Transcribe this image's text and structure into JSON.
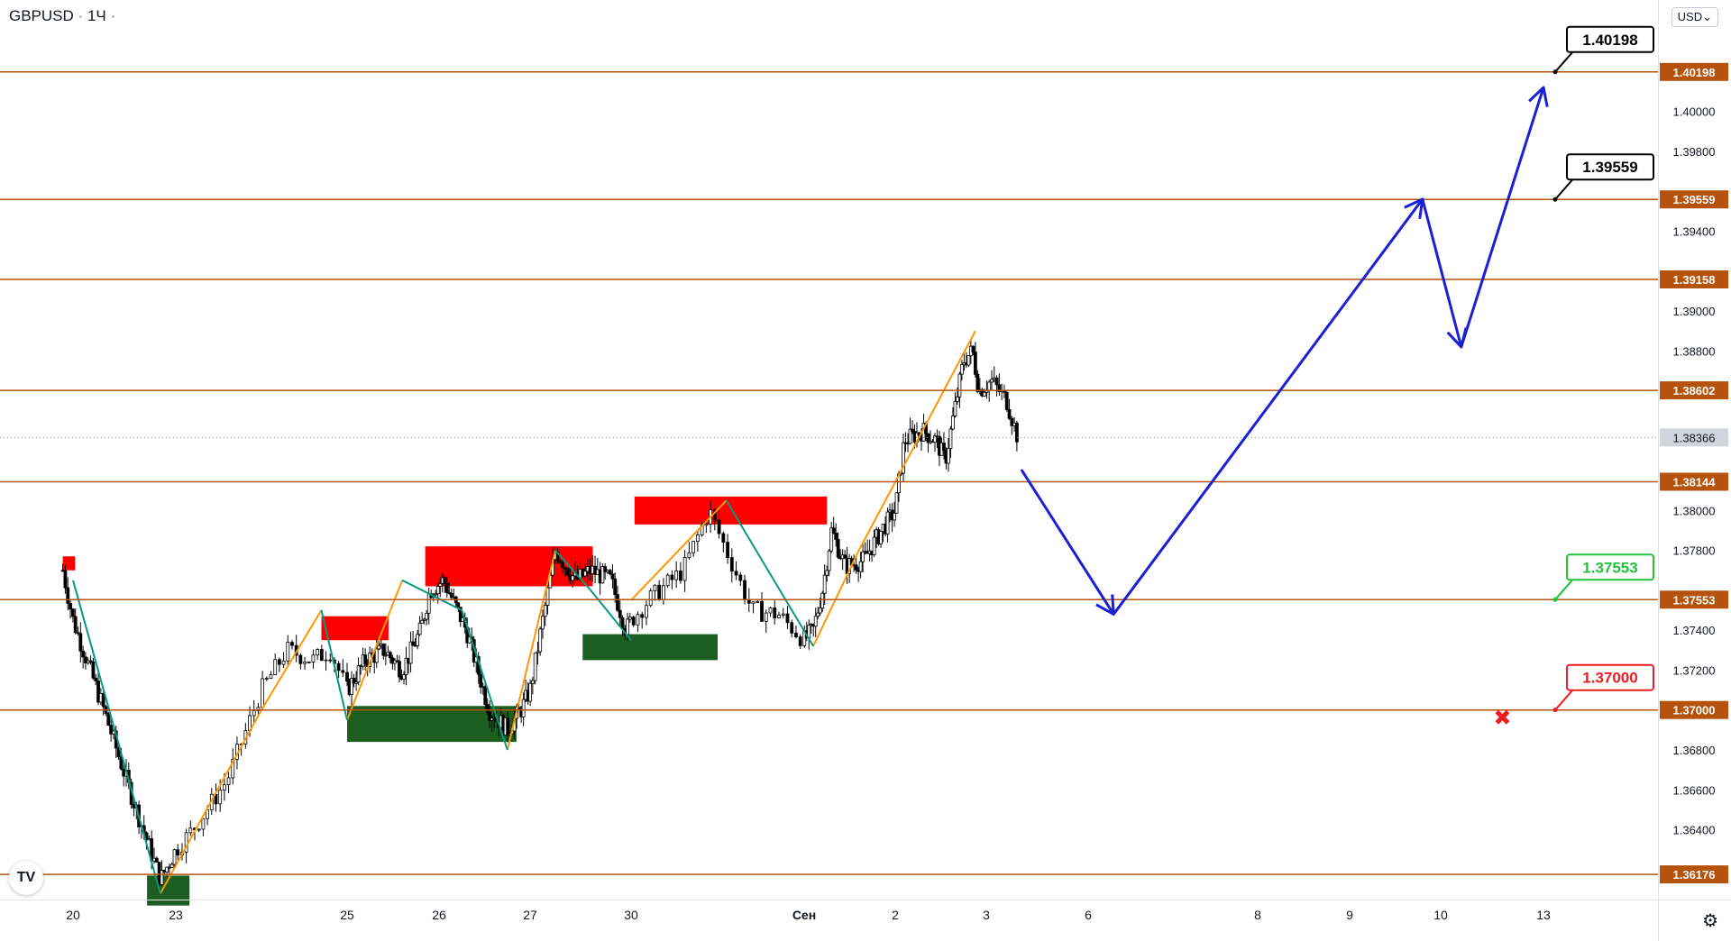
{
  "header": {
    "symbol": "GBPUSD",
    "separator": "·",
    "interval": "1Ч",
    "trailing_dot": "·"
  },
  "currency_button": "USD⌄",
  "logo_text": "TV",
  "settings_icon": "gear-icon",
  "colors": {
    "level_line": "#b5530d",
    "level_tag_bg": "#b5530d",
    "current_price_bg": "#d1d4dc",
    "up_leg": "#ff9800",
    "down_leg": "#089981",
    "supply_zone": "#ff0000",
    "demand_zone": "#1b5e20",
    "forecast_path": "#1a1fd6",
    "target_green": "#22c33a",
    "stop_red": "#ee1c24",
    "candle": "#000000"
  },
  "chart_data": {
    "type": "candlestick",
    "symbol": "GBPUSD",
    "interval": "1H",
    "ylim": [
      1.3605,
      1.4045
    ],
    "y_ticks": [
      1.364,
      1.366,
      1.368,
      1.372,
      1.374,
      1.378,
      1.38,
      1.388,
      1.39,
      1.394,
      1.398,
      1.4
    ],
    "y_tick_labels": [
      "1.36400",
      "1.36600",
      "1.36800",
      "1.37200",
      "1.37400",
      "1.37800",
      "1.38000",
      "1.38800",
      "1.39000",
      "1.39400",
      "1.39800",
      "1.40000"
    ],
    "x_ticks": [
      {
        "label": "20",
        "t": 0
      },
      {
        "label": "23",
        "t": 1
      },
      {
        "label": "25",
        "t": 2
      },
      {
        "label": "26",
        "t": 3
      },
      {
        "label": "27",
        "t": 4
      },
      {
        "label": "30",
        "t": 5
      },
      {
        "label": "Сен",
        "t": 6
      },
      {
        "label": "2",
        "t": 7
      },
      {
        "label": "3",
        "t": 8
      },
      {
        "label": "6",
        "t": 9
      },
      {
        "label": "8",
        "t": 10
      },
      {
        "label": "9",
        "t": 11
      },
      {
        "label": "10",
        "t": 12
      },
      {
        "label": "13",
        "t": 13
      }
    ],
    "horizontal_levels": [
      {
        "value": 1.40198,
        "label": "1.40198"
      },
      {
        "value": 1.39559,
        "label": "1.39559"
      },
      {
        "value": 1.39158,
        "label": "1.39158"
      },
      {
        "value": 1.38602,
        "label": "1.38602"
      },
      {
        "value": 1.38144,
        "label": "1.38144"
      },
      {
        "value": 1.37553,
        "label": "1.37553"
      },
      {
        "value": 1.37,
        "label": "1.37000"
      },
      {
        "value": 1.36176,
        "label": "1.36176"
      }
    ],
    "current_price": {
      "value": 1.38366,
      "label": "1.38366"
    },
    "close_path": [
      [
        -0.1,
        1.377
      ],
      [
        0.0,
        1.3745
      ],
      [
        0.3,
        1.37
      ],
      [
        0.55,
        1.366
      ],
      [
        0.75,
        1.363
      ],
      [
        0.85,
        1.3615
      ],
      [
        0.95,
        1.3625
      ],
      [
        1.1,
        1.364
      ],
      [
        1.3,
        1.3665
      ],
      [
        1.5,
        1.371
      ],
      [
        1.65,
        1.373
      ],
      [
        1.8,
        1.3725
      ],
      [
        1.9,
        1.373
      ],
      [
        2.0,
        1.371
      ],
      [
        2.2,
        1.3725
      ],
      [
        2.4,
        1.373
      ],
      [
        2.6,
        1.372
      ],
      [
        2.8,
        1.374
      ],
      [
        2.9,
        1.376
      ],
      [
        3.05,
        1.3765
      ],
      [
        3.3,
        1.374
      ],
      [
        3.55,
        1.37
      ],
      [
        3.75,
        1.369
      ],
      [
        3.9,
        1.37
      ],
      [
        4.0,
        1.371
      ],
      [
        4.25,
        1.378
      ],
      [
        4.45,
        1.3765
      ],
      [
        4.6,
        1.377
      ],
      [
        4.8,
        1.3765
      ],
      [
        4.95,
        1.374
      ],
      [
        5.1,
        1.3755
      ],
      [
        5.3,
        1.377
      ],
      [
        5.45,
        1.38
      ],
      [
        5.55,
        1.378
      ],
      [
        5.7,
        1.375
      ],
      [
        5.85,
        1.3748
      ],
      [
        6.0,
        1.3735
      ],
      [
        6.1,
        1.374
      ],
      [
        6.2,
        1.376
      ],
      [
        6.3,
        1.379
      ],
      [
        6.45,
        1.3772
      ],
      [
        6.65,
        1.3775
      ],
      [
        6.85,
        1.379
      ],
      [
        7.0,
        1.38
      ],
      [
        7.1,
        1.3835
      ],
      [
        7.3,
        1.384
      ],
      [
        7.45,
        1.3835
      ],
      [
        7.55,
        1.3825
      ],
      [
        7.65,
        1.385
      ],
      [
        7.75,
        1.3875
      ],
      [
        7.85,
        1.388
      ],
      [
        7.92,
        1.386
      ],
      [
        8.05,
        1.3865
      ],
      [
        8.2,
        1.3855
      ],
      [
        8.3,
        1.3838
      ]
    ],
    "up_legs": [
      [
        [
          0.85,
          1.3608
        ],
        [
          1.5,
          1.37
        ]
      ],
      [
        [
          1.5,
          1.37
        ],
        [
          1.85,
          1.375
        ]
      ],
      [
        [
          2.0,
          1.3695
        ],
        [
          2.6,
          1.3765
        ]
      ],
      [
        [
          3.75,
          1.368
        ],
        [
          4.25,
          1.378
        ]
      ],
      [
        [
          5.0,
          1.3755
        ],
        [
          5.55,
          1.3805
        ]
      ],
      [
        [
          6.1,
          1.3732
        ],
        [
          6.6,
          1.378
        ]
      ],
      [
        [
          6.6,
          1.378
        ],
        [
          7.3,
          1.384
        ]
      ],
      [
        [
          7.3,
          1.384
        ],
        [
          7.88,
          1.389
        ]
      ]
    ],
    "down_legs": [
      [
        [
          0.0,
          1.3765
        ],
        [
          0.85,
          1.3608
        ]
      ],
      [
        [
          1.85,
          1.375
        ],
        [
          2.0,
          1.3695
        ]
      ],
      [
        [
          2.6,
          1.3765
        ],
        [
          3.25,
          1.375
        ]
      ],
      [
        [
          3.25,
          1.375
        ],
        [
          3.75,
          1.368
        ]
      ],
      [
        [
          4.25,
          1.378
        ],
        [
          4.6,
          1.376
        ]
      ],
      [
        [
          4.6,
          1.376
        ],
        [
          5.0,
          1.3735
        ]
      ],
      [
        [
          5.55,
          1.3805
        ],
        [
          6.1,
          1.3732
        ]
      ]
    ],
    "supply_zones": [
      {
        "t0": -0.1,
        "t1": 0.02,
        "top": 1.3777,
        "bottom": 1.377
      },
      {
        "t0": 1.85,
        "t1": 2.45,
        "top": 1.3747,
        "bottom": 1.3735
      },
      {
        "t0": 2.85,
        "t1": 4.62,
        "top": 1.3782,
        "bottom": 1.3762
      },
      {
        "t0": 5.02,
        "t1": 6.25,
        "top": 1.3807,
        "bottom": 1.3793
      }
    ],
    "demand_zones": [
      {
        "t0": 0.72,
        "t1": 1.08,
        "top": 1.3617,
        "bottom": 1.3602
      },
      {
        "t0": 2.0,
        "t1": 3.85,
        "top": 1.3702,
        "bottom": 1.3684
      },
      {
        "t0": 4.52,
        "t1": 5.5,
        "top": 1.3738,
        "bottom": 1.3725
      }
    ],
    "forecast_path": [
      [
        8.35,
        1.382
      ],
      [
        9.15,
        1.3748
      ],
      [
        11.8,
        1.3956
      ],
      [
        12.2,
        1.3882
      ],
      [
        13.0,
        1.4012
      ]
    ],
    "callouts": [
      {
        "label": "1.40198",
        "value": 1.40198,
        "style": "black"
      },
      {
        "label": "1.39559",
        "value": 1.39559,
        "style": "black"
      },
      {
        "label": "1.37553",
        "value": 1.37553,
        "style": "green"
      },
      {
        "label": "1.37000",
        "value": 1.37,
        "style": "red"
      }
    ],
    "stop_marker": {
      "t": 12.6,
      "value": 1.3696,
      "glyph": "✖"
    }
  }
}
